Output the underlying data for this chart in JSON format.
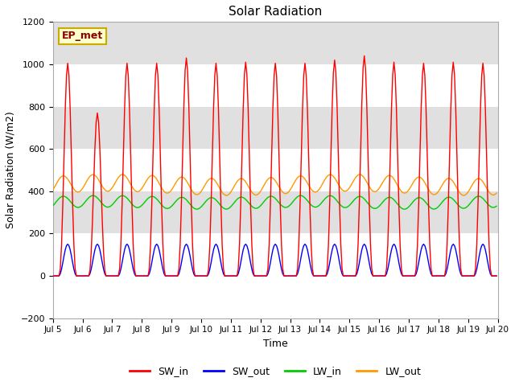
{
  "title": "Solar Radiation",
  "ylabel": "Solar Radiation (W/m2)",
  "xlabel": "Time",
  "ylim": [
    -200,
    1200
  ],
  "yticks": [
    -200,
    0,
    200,
    400,
    600,
    800,
    1000,
    1200
  ],
  "start_day": 5,
  "end_day": 20,
  "hours_per_day": 24,
  "colors": {
    "SW_in": "#ff0000",
    "SW_out": "#0000ff",
    "LW_in": "#00cc00",
    "LW_out": "#ff9900"
  },
  "bg_color": "#ffffff",
  "plot_bg": "#ffffff",
  "label_box_text": "EP_met",
  "label_box_facecolor": "#ffffcc",
  "label_box_edgecolor": "#ccaa00",
  "band_color": "#e0e0e0",
  "band_ranges": [
    [
      200,
      400
    ],
    [
      600,
      800
    ],
    [
      1000,
      1200
    ]
  ],
  "sw_in_peaks": [
    1005,
    770,
    1005,
    1005,
    1030,
    1005,
    1010,
    1005,
    1005,
    1020,
    1040,
    1010,
    1005,
    1010,
    1005
  ],
  "sw_out_peak": 150,
  "lw_in_base": 320,
  "lw_in_amp": 55,
  "lw_out_base": 390,
  "lw_out_amp": 80
}
